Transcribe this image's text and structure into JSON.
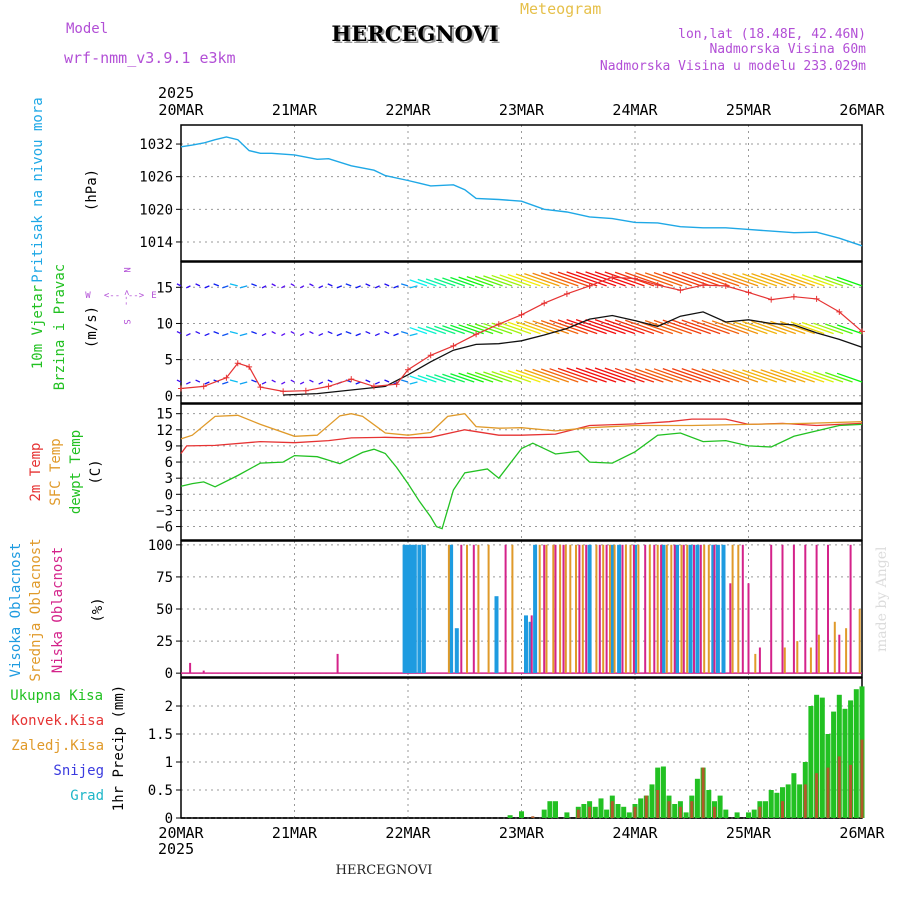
{
  "header": {
    "model_label": "Model",
    "model_name": "wrf-nmm_v3.9.1 e3km",
    "meteogram_label": "Meteogram",
    "station": "HERCEGNOVI",
    "lonlat": "lon,lat (18.48E, 42.46N)",
    "altitude": "Nadmorska Visina 60m",
    "model_altitude": "Nadmorska Visina u modelu 233.029m",
    "year": "2025",
    "watermark": "made by Angel",
    "footer_station": "HERCEGNOVI"
  },
  "time_axis": {
    "labels": [
      "20MAR",
      "21MAR",
      "22MAR",
      "23MAR",
      "24MAR",
      "25MAR",
      "26MAR"
    ],
    "days": [
      0,
      1,
      2,
      3,
      4,
      5,
      6
    ]
  },
  "colors": {
    "pressure": "#1fa8e6",
    "green": "#22c122",
    "red": "#e63333",
    "orange": "#e09a2a",
    "blue_cloud": "#1e9be0",
    "magenta": "#d4238a",
    "purple": "#b24fd6",
    "meteo_label": "#e6c04a",
    "snow": "#3b3bdf",
    "grad": "#1fb7c8"
  },
  "chart_data": [
    {
      "type": "line",
      "name": "pressure",
      "ylabels": [
        "Pritisak na nivou mora",
        "(hPa)"
      ],
      "yticks": [
        "1032",
        "1026",
        "1020",
        "1014"
      ],
      "ytick_values": [
        1032,
        1026,
        1020,
        1014
      ],
      "ylim": [
        1010.5,
        1035.5
      ],
      "x": [
        0,
        0.1,
        0.2,
        0.3,
        0.4,
        0.5,
        0.6,
        0.7,
        0.8,
        1.0,
        1.2,
        1.3,
        1.5,
        1.7,
        1.8,
        2.0,
        2.1,
        2.2,
        2.4,
        2.5,
        2.6,
        2.8,
        3.0,
        3.2,
        3.4,
        3.6,
        3.8,
        4.0,
        4.2,
        4.4,
        4.6,
        4.8,
        5.0,
        5.2,
        5.4,
        5.6,
        5.8,
        6.0
      ],
      "y": [
        1031.5,
        1031.8,
        1032.2,
        1032.8,
        1033.3,
        1032.8,
        1030.8,
        1030.3,
        1030.3,
        1030.0,
        1029.2,
        1029.3,
        1028.0,
        1027.2,
        1026.2,
        1025.3,
        1024.8,
        1024.3,
        1024.5,
        1023.6,
        1022.0,
        1021.8,
        1021.5,
        1020.0,
        1019.5,
        1018.6,
        1018.3,
        1017.6,
        1017.5,
        1016.8,
        1016.6,
        1016.6,
        1016.3,
        1016.0,
        1015.7,
        1015.8,
        1014.7,
        1013.3
      ],
      "xlabels_top": true
    },
    {
      "type": "wind",
      "name": "wind",
      "ylabels": [
        "10m Vjetar",
        "Brzina i Pravac",
        "(m/s)"
      ],
      "compass": [
        "N",
        "S",
        "W",
        "E"
      ],
      "compass_arrows": [
        "<--",
        "-->",
        "<--",
        "-->"
      ],
      "yticks": [
        "15",
        "10",
        "5",
        "0"
      ],
      "ytick_values": [
        15,
        10,
        5,
        0
      ],
      "ylim": [
        -1,
        18.5
      ],
      "barb_rows": [
        15.2,
        8.6,
        1.9
      ],
      "speed_red_x": [
        0,
        0.2,
        0.4,
        0.5,
        0.6,
        0.7,
        0.9,
        1.1,
        1.3,
        1.5,
        1.7,
        1.9,
        2.0,
        2.2,
        2.4,
        2.6,
        2.8,
        3.0,
        3.2,
        3.4,
        3.6,
        3.8,
        4.0,
        4.2,
        4.4,
        4.6,
        4.8,
        5.0,
        5.2,
        5.4,
        5.6,
        5.8,
        6.0
      ],
      "speed_red": [
        1.0,
        1.3,
        2.5,
        4.5,
        4.0,
        1.2,
        0.6,
        0.7,
        1.3,
        2.3,
        1.3,
        1.6,
        3.6,
        5.6,
        6.9,
        8.5,
        9.9,
        11.2,
        12.8,
        14.1,
        15.2,
        16.4,
        16.2,
        15.3,
        14.6,
        15.3,
        15.2,
        14.3,
        13.3,
        13.7,
        13.4,
        11.6,
        8.9
      ],
      "speed_black_x": [
        0.9,
        1.2,
        1.5,
        1.8,
        2.0,
        2.2,
        2.4,
        2.6,
        2.8,
        3.0,
        3.2,
        3.4,
        3.6,
        3.8,
        4.0,
        4.2,
        4.4,
        4.6,
        4.8,
        5.0,
        5.2,
        5.4,
        5.6,
        5.8,
        6.0
      ],
      "speed_black": [
        0.1,
        0.3,
        0.8,
        1.3,
        2.9,
        4.7,
        6.3,
        7.1,
        7.2,
        7.6,
        8.4,
        9.3,
        10.6,
        11.1,
        10.4,
        9.6,
        11.0,
        11.6,
        10.2,
        10.5,
        10.0,
        9.8,
        8.7,
        7.8,
        6.7
      ]
    },
    {
      "type": "line",
      "name": "temperature",
      "ylabels": [
        "2m Temp",
        "SFC Temp",
        "dewpt Temp",
        "(C)"
      ],
      "yticks": [
        "15",
        "12",
        "9",
        "6",
        "3",
        "0",
        "−3",
        "−6"
      ],
      "ytick_values": [
        15,
        12,
        9,
        6,
        3,
        0,
        -3,
        -6
      ],
      "ylim": [
        -8.5,
        16.8
      ],
      "series": [
        {
          "name": "2m Temp",
          "x": [
            0,
            0.05,
            0.3,
            0.7,
            1.0,
            1.3,
            1.5,
            1.8,
            2.0,
            2.2,
            2.5,
            2.8,
            3.0,
            3.3,
            3.6,
            4.0,
            4.3,
            4.5,
            4.8,
            5.0,
            5.3,
            5.6,
            5.8,
            6.0
          ],
          "y": [
            7.6,
            9.0,
            9.1,
            9.8,
            9.6,
            10.0,
            10.5,
            10.6,
            10.5,
            10.6,
            12.0,
            11.0,
            11.0,
            11.2,
            12.8,
            13.1,
            13.5,
            14.0,
            14.0,
            13.0,
            13.2,
            12.8,
            13.0,
            13.2
          ]
        },
        {
          "name": "SFC Temp",
          "x": [
            0,
            0.1,
            0.3,
            0.5,
            0.7,
            1.0,
            1.2,
            1.4,
            1.5,
            1.6,
            1.8,
            2.0,
            2.2,
            2.35,
            2.5,
            2.6,
            2.8,
            3.0,
            3.3,
            3.6,
            4.0,
            4.5,
            5.0,
            5.5,
            6.0
          ],
          "y": [
            10.3,
            11.0,
            14.5,
            14.7,
            13.0,
            10.8,
            11.0,
            14.6,
            15.0,
            14.5,
            11.4,
            11.0,
            11.5,
            14.5,
            15.0,
            12.6,
            12.3,
            12.4,
            11.8,
            12.4,
            12.8,
            12.8,
            13.0,
            13.2,
            13.5
          ]
        },
        {
          "name": "dewpt Temp",
          "x": [
            0,
            0.1,
            0.2,
            0.3,
            0.5,
            0.7,
            0.9,
            1.0,
            1.2,
            1.4,
            1.6,
            1.7,
            1.8,
            1.9,
            2.0,
            2.1,
            2.2,
            2.25,
            2.3,
            2.4,
            2.5,
            2.7,
            2.8,
            3.0,
            3.1,
            3.3,
            3.5,
            3.6,
            3.8,
            4.0,
            4.2,
            4.4,
            4.6,
            4.8,
            5.0,
            5.2,
            5.4,
            5.6,
            5.8,
            6.0
          ],
          "y": [
            1.5,
            2.0,
            2.3,
            1.4,
            3.5,
            5.8,
            6.0,
            7.2,
            7.0,
            5.7,
            7.8,
            8.4,
            7.6,
            5.0,
            2.0,
            -1.3,
            -4.2,
            -6.0,
            -6.4,
            0.8,
            4.0,
            4.7,
            3.0,
            8.5,
            9.5,
            7.5,
            8.0,
            6.0,
            5.8,
            7.9,
            11.0,
            11.4,
            9.8,
            10.0,
            9.0,
            8.8,
            10.8,
            11.8,
            12.8,
            13.0
          ]
        }
      ]
    },
    {
      "type": "bar",
      "name": "cloud cover",
      "ylabels": [
        "Visoka Oblacnost",
        "Srednja Oblacnost",
        "Niska Oblacnost",
        "(%)"
      ],
      "yticks": [
        "100",
        "75",
        "50",
        "25",
        "0"
      ],
      "ytick_values": [
        100,
        75,
        50,
        25,
        0
      ],
      "ylim": [
        -3,
        103
      ],
      "series": [
        {
          "name": "Visoka Oblacnost",
          "x": [
            1.97,
            2.0,
            2.03,
            2.06,
            2.1,
            2.14,
            2.38,
            2.43,
            2.78,
            3.04,
            3.08,
            3.12,
            3.6,
            3.8,
            3.86,
            4.0,
            4.25,
            4.37,
            4.49,
            4.55,
            4.69,
            4.73,
            4.78
          ],
          "y": [
            100,
            100,
            100,
            100,
            100,
            100,
            100,
            35,
            60,
            45,
            40,
            100,
            100,
            100,
            100,
            100,
            100,
            100,
            100,
            100,
            100,
            100,
            100
          ]
        },
        {
          "name": "Srednja Oblacnost",
          "x": [
            2.36,
            2.52,
            2.62,
            2.71,
            2.92,
            3.16,
            3.22,
            3.28,
            3.34,
            3.39,
            3.43,
            3.48,
            3.54,
            3.66,
            3.72,
            3.78,
            3.82,
            3.92,
            3.96,
            4.03,
            4.13,
            4.2,
            4.28,
            4.32,
            4.41,
            4.46,
            4.61,
            4.65,
            4.86,
            4.91,
            5.06,
            5.32,
            5.43,
            5.55,
            5.62,
            5.76,
            5.86,
            5.98
          ],
          "y": [
            100,
            100,
            100,
            100,
            100,
            100,
            100,
            100,
            100,
            100,
            100,
            100,
            100,
            100,
            100,
            100,
            100,
            100,
            100,
            100,
            100,
            100,
            100,
            100,
            100,
            100,
            100,
            100,
            100,
            100,
            15,
            20,
            25,
            20,
            30,
            40,
            35,
            50
          ]
        },
        {
          "name": "Niska Oblacnost",
          "x": [
            0.08,
            0.2,
            1.38,
            2.47,
            2.58,
            2.86,
            3.09,
            3.2,
            3.3,
            3.37,
            3.51,
            3.57,
            3.69,
            3.75,
            3.89,
            3.99,
            4.09,
            4.17,
            4.23,
            4.35,
            4.43,
            4.52,
            4.58,
            4.7,
            4.84,
            4.95,
            5.0,
            5.1,
            5.2,
            5.3,
            5.4,
            5.5,
            5.6,
            5.7,
            5.8,
            5.9
          ],
          "y": [
            8,
            2,
            15,
            100,
            100,
            100,
            45,
            100,
            100,
            100,
            100,
            100,
            100,
            100,
            100,
            100,
            100,
            100,
            100,
            100,
            100,
            100,
            100,
            100,
            70,
            100,
            70,
            20,
            100,
            100,
            100,
            100,
            100,
            100,
            30,
            100
          ]
        }
      ]
    },
    {
      "type": "bar",
      "name": "precipitation",
      "ylabels": [
        "Ukupna Kisa",
        "Konvek.Kisa",
        "Zaledj.Kisa",
        "Snijeg",
        "Grad",
        "1hr Precip (mm)"
      ],
      "yticks": [
        "2",
        "1.5",
        "1",
        "0.5",
        "0"
      ],
      "ytick_values": [
        2,
        1.5,
        1,
        0.5,
        0
      ],
      "ylim": [
        0,
        2.5
      ],
      "series": [
        {
          "name": "Ukupna Kisa",
          "x": [
            2.9,
            3.0,
            3.2,
            3.25,
            3.3,
            3.4,
            3.5,
            3.55,
            3.6,
            3.65,
            3.7,
            3.75,
            3.8,
            3.85,
            3.9,
            3.95,
            4.0,
            4.05,
            4.1,
            4.15,
            4.2,
            4.25,
            4.3,
            4.35,
            4.4,
            4.45,
            4.5,
            4.55,
            4.6,
            4.65,
            4.7,
            4.75,
            4.8,
            4.9,
            5.0,
            5.05,
            5.1,
            5.15,
            5.2,
            5.25,
            5.3,
            5.35,
            5.4,
            5.45,
            5.5,
            5.55,
            5.6,
            5.65,
            5.7,
            5.75,
            5.8,
            5.85,
            5.9,
            5.95,
            6.0
          ],
          "y": [
            0.05,
            0.12,
            0.15,
            0.3,
            0.3,
            0.1,
            0.2,
            0.25,
            0.3,
            0.2,
            0.35,
            0.15,
            0.4,
            0.25,
            0.2,
            0.1,
            0.25,
            0.35,
            0.4,
            0.6,
            0.9,
            0.92,
            0.4,
            0.25,
            0.3,
            0.1,
            0.4,
            0.7,
            0.9,
            0.5,
            0.3,
            0.4,
            0.15,
            0.1,
            0.1,
            0.15,
            0.3,
            0.3,
            0.5,
            0.45,
            0.55,
            0.6,
            0.8,
            0.6,
            1.0,
            2.0,
            2.2,
            2.15,
            1.5,
            1.9,
            2.2,
            1.95,
            2.1,
            2.3,
            2.35
          ]
        },
        {
          "name": "Konvek.Kisa",
          "x": [
            3.1,
            3.5,
            3.6,
            3.8,
            4.0,
            4.1,
            4.2,
            4.3,
            4.4,
            4.5,
            4.6,
            4.7,
            5.1,
            5.3,
            5.5,
            5.6,
            5.7,
            5.8,
            5.9,
            6.0
          ],
          "y": [
            0.03,
            0.15,
            0.2,
            0.3,
            0.2,
            0.4,
            0.5,
            0.3,
            0.2,
            0.3,
            0.9,
            0.2,
            0.2,
            0.3,
            0.6,
            0.8,
            0.9,
            1.1,
            0.95,
            1.4
          ]
        }
      ]
    }
  ]
}
